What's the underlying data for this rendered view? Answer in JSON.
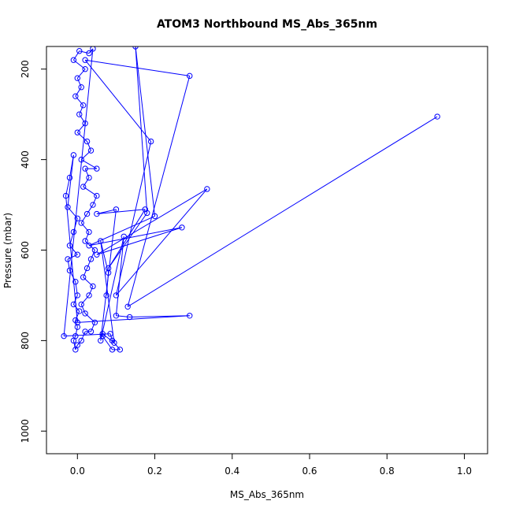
{
  "chart_data": {
    "type": "line",
    "title": "ATOM3 Northbound MS_Abs_365nm",
    "xlabel": "MS_Abs_365nm",
    "ylabel": "Pressure (mbar)",
    "xlim": [
      -0.08,
      1.06
    ],
    "ylim": [
      1050,
      150
    ],
    "y_reversed": true,
    "xticks": [
      0.0,
      0.2,
      0.4,
      0.6,
      0.8,
      1.0
    ],
    "xtick_labels": [
      "0.0",
      "0.2",
      "0.4",
      "0.6",
      "0.8",
      "1.0"
    ],
    "yticks": [
      200,
      400,
      600,
      800,
      1000
    ],
    "ytick_labels": [
      "200",
      "400",
      "600",
      "800",
      "1000"
    ],
    "grid": false,
    "legend": "none",
    "colors": {
      "series": "#0000ff",
      "axis": "#000000"
    },
    "series": [
      {
        "marker": "open-circle",
        "points": [
          [
            0.93,
            305
          ],
          [
            0.13,
            725
          ],
          [
            0.29,
            215
          ],
          [
            0.02,
            180
          ],
          [
            0.19,
            360
          ],
          [
            0.1,
            700
          ],
          [
            0.335,
            465
          ],
          [
            0.05,
            610
          ],
          [
            0.27,
            550
          ],
          [
            0.03,
            590
          ],
          [
            0.2,
            525
          ],
          [
            0.15,
            150
          ],
          [
            0.18,
            518
          ],
          [
            0.08,
            640
          ],
          [
            0.175,
            510
          ],
          [
            0.05,
            520
          ],
          [
            0.1,
            510
          ],
          [
            0.06,
            800
          ],
          [
            0.12,
            570
          ],
          [
            0.1,
            745
          ],
          [
            0.135,
            748
          ],
          [
            0.29,
            745
          ],
          [
            0.0,
            760
          ],
          [
            -0.03,
            480
          ],
          [
            -0.02,
            440
          ],
          [
            -0.01,
            390
          ],
          [
            -0.025,
            505
          ],
          [
            0.0,
            530
          ],
          [
            -0.01,
            560
          ],
          [
            -0.02,
            590
          ],
          [
            0.0,
            610
          ],
          [
            -0.025,
            620
          ],
          [
            -0.02,
            645
          ],
          [
            -0.005,
            670
          ],
          [
            0.0,
            700
          ],
          [
            -0.01,
            720
          ],
          [
            0.005,
            735
          ],
          [
            -0.005,
            755
          ],
          [
            0.0,
            770
          ],
          [
            -0.005,
            790
          ],
          [
            -0.01,
            800
          ],
          [
            -0.005,
            820
          ],
          [
            0.0,
            810
          ],
          [
            0.01,
            800
          ],
          [
            0.02,
            780
          ],
          [
            0.035,
            780
          ],
          [
            0.045,
            760
          ],
          [
            0.02,
            740
          ],
          [
            0.01,
            720
          ],
          [
            0.03,
            700
          ],
          [
            0.04,
            680
          ],
          [
            0.015,
            660
          ],
          [
            0.025,
            640
          ],
          [
            0.035,
            620
          ],
          [
            0.045,
            600
          ],
          [
            0.02,
            580
          ],
          [
            0.03,
            560
          ],
          [
            0.01,
            540
          ],
          [
            0.025,
            520
          ],
          [
            0.04,
            500
          ],
          [
            0.05,
            480
          ],
          [
            0.015,
            460
          ],
          [
            0.03,
            440
          ],
          [
            0.02,
            420
          ],
          [
            0.05,
            420
          ],
          [
            0.01,
            400
          ],
          [
            0.035,
            380
          ],
          [
            0.025,
            360
          ],
          [
            0.0,
            340
          ],
          [
            0.02,
            320
          ],
          [
            0.005,
            300
          ],
          [
            0.015,
            280
          ],
          [
            -0.005,
            260
          ],
          [
            0.01,
            240
          ],
          [
            0.0,
            220
          ],
          [
            0.02,
            200
          ],
          [
            -0.01,
            180
          ],
          [
            0.005,
            160
          ],
          [
            0.03,
            165
          ],
          [
            0.04,
            155
          ],
          [
            -0.035,
            790
          ],
          [
            0.085,
            785
          ],
          [
            0.09,
            800
          ],
          [
            0.11,
            820
          ],
          [
            0.09,
            820
          ],
          [
            0.065,
            790
          ],
          [
            0.065,
            785
          ],
          [
            0.095,
            805
          ],
          [
            0.06,
            580
          ],
          [
            0.08,
            650
          ],
          [
            0.075,
            700
          ]
        ]
      }
    ]
  }
}
